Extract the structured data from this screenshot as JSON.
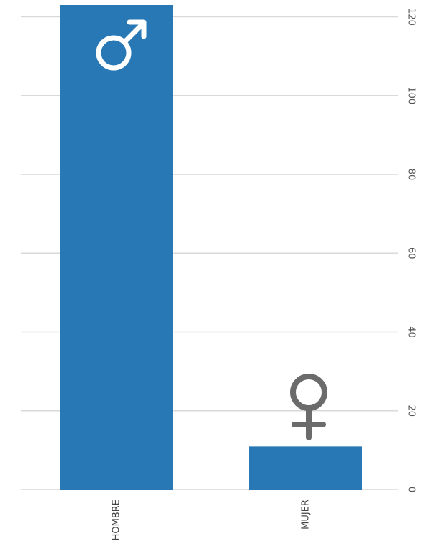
{
  "chart_data": {
    "type": "bar",
    "categories": [
      "HOMBRE",
      "MUJER"
    ],
    "values": [
      123,
      11
    ],
    "ylim": [
      0,
      123
    ],
    "yticks": [
      0,
      20,
      40,
      60,
      80,
      100,
      120
    ],
    "grid": true,
    "bar_color": "#2778b4",
    "title": "",
    "xlabel": "",
    "ylabel": ""
  },
  "icons": {
    "HOMBRE": {
      "name": "male-symbol-icon",
      "color": "#ffffff"
    },
    "MUJER": {
      "name": "female-symbol-icon",
      "color": "#6b6b6b"
    }
  }
}
